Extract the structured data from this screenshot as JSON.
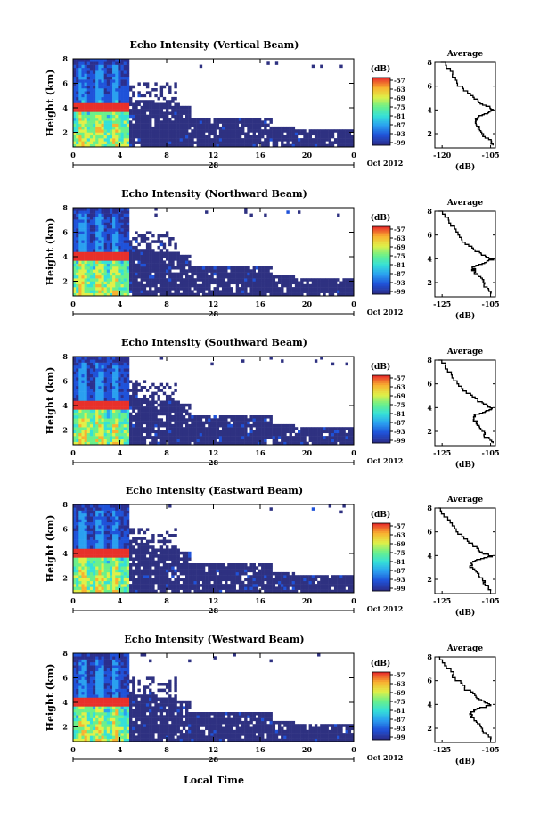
{
  "figure": {
    "xlabel": "Local Time",
    "xticks": [
      "0",
      "4",
      "8",
      "12",
      "16",
      "20",
      "0"
    ],
    "date_label": "28",
    "month_label": "Oct 2012",
    "ylabel": "Height (km)",
    "yticks": [
      "8",
      "6",
      "4",
      "2"
    ],
    "colorbar_unit": "(dB)",
    "colorbar_ticks": [
      "-57",
      "-63",
      "-69",
      "-75",
      "-81",
      "-87",
      "-93",
      "-99"
    ],
    "colorscale": [
      "#2b2f8e",
      "#1f52d9",
      "#2aa0f0",
      "#35e0d8",
      "#6af08a",
      "#e0f048",
      "#f8b230",
      "#e8302a"
    ],
    "avg_title": "Average",
    "avg_xlabel": "(dB)"
  },
  "chart_data": [
    {
      "type": "heatmap",
      "title": "Echo Intensity (Vertical Beam)",
      "x_range_hours": [
        0,
        24
      ],
      "y_range_km": [
        0.8,
        8
      ],
      "value_range_db": [
        -99,
        -57
      ],
      "avg_xticks": [
        "-120",
        "-105"
      ],
      "avg_profile": {
        "height_km": [
          8,
          7,
          6,
          5.2,
          4.6,
          4.2,
          3.9,
          3.6,
          3.3,
          3.0,
          2.5,
          2.0,
          1.5,
          1.0
        ],
        "db": [
          -125,
          -121,
          -118,
          -114,
          -110,
          -106,
          -104,
          -108,
          -111,
          -111,
          -110,
          -109,
          -106,
          -104
        ]
      }
    },
    {
      "type": "heatmap",
      "title": "Echo Intensity (Northward Beam)",
      "x_range_hours": [
        0,
        24
      ],
      "y_range_km": [
        0.8,
        8
      ],
      "value_range_db": [
        -99,
        -57
      ],
      "avg_xticks": [
        "-125",
        "-105"
      ],
      "avg_profile": {
        "height_km": [
          8,
          7,
          6,
          5.2,
          4.6,
          4.2,
          3.9,
          3.6,
          3.3,
          3.0,
          2.5,
          2.0,
          1.5,
          1.0
        ],
        "db": [
          -126,
          -122,
          -119,
          -115,
          -111,
          -107,
          -104,
          -108,
          -112,
          -112,
          -110,
          -108,
          -107,
          -105
        ]
      }
    },
    {
      "type": "heatmap",
      "title": "Echo Intensity (Southward Beam)",
      "x_range_hours": [
        0,
        24
      ],
      "y_range_km": [
        0.8,
        8
      ],
      "value_range_db": [
        -99,
        -57
      ],
      "avg_xticks": [
        "-125",
        "-105"
      ],
      "avg_profile": {
        "height_km": [
          8,
          7,
          6,
          5.2,
          4.6,
          4.2,
          3.9,
          3.6,
          3.3,
          3.0,
          2.5,
          2.0,
          1.5,
          1.0
        ],
        "db": [
          -126,
          -122,
          -119,
          -115,
          -111,
          -107,
          -104,
          -108,
          -112,
          -112,
          -110,
          -108,
          -107,
          -104
        ]
      }
    },
    {
      "type": "heatmap",
      "title": "Echo Intensity (Eastward Beam)",
      "x_range_hours": [
        0,
        24
      ],
      "y_range_km": [
        0.8,
        8
      ],
      "value_range_db": [
        -99,
        -57
      ],
      "avg_xticks": [
        "-125",
        "-105"
      ],
      "avg_profile": {
        "height_km": [
          8,
          7,
          6,
          5.2,
          4.6,
          4.2,
          3.9,
          3.6,
          3.3,
          3.0,
          2.5,
          2.0,
          1.5,
          1.0
        ],
        "db": [
          -126,
          -123,
          -119,
          -115,
          -111,
          -108,
          -105,
          -110,
          -113,
          -113,
          -111,
          -109,
          -107,
          -105
        ]
      }
    },
    {
      "type": "heatmap",
      "title": "Echo Intensity (Westward Beam)",
      "x_range_hours": [
        0,
        24
      ],
      "y_range_km": [
        0.8,
        8
      ],
      "value_range_db": [
        -99,
        -57
      ],
      "avg_xticks": [
        "-125",
        "-105"
      ],
      "avg_profile": {
        "height_km": [
          8,
          7,
          6,
          5.2,
          4.6,
          4.2,
          3.9,
          3.6,
          3.3,
          3.0,
          2.5,
          2.0,
          1.5,
          1.0
        ],
        "db": [
          -126,
          -123,
          -119,
          -115,
          -111,
          -108,
          -105,
          -110,
          -113,
          -113,
          -111,
          -109,
          -107,
          -105
        ]
      }
    }
  ]
}
